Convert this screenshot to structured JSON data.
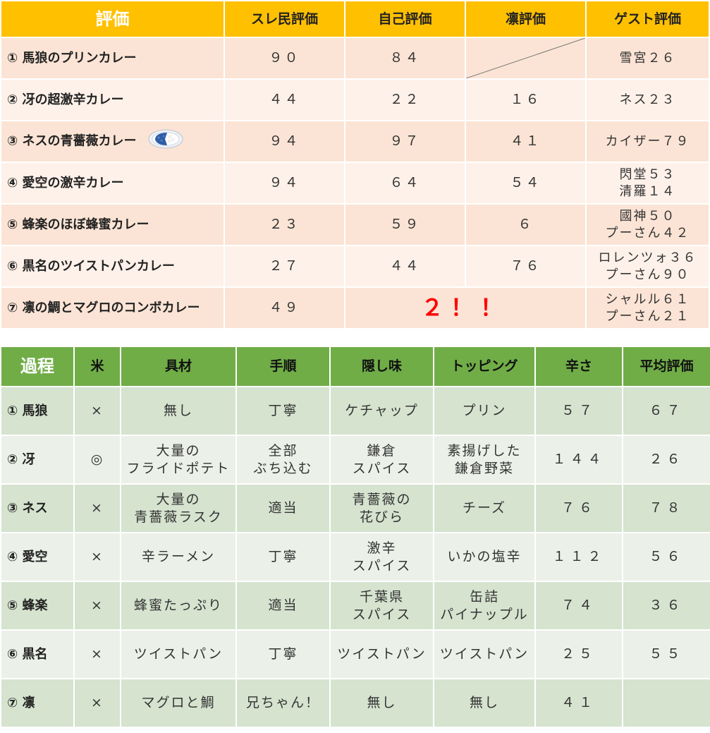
{
  "eval_table": {
    "headers": [
      "評価",
      "スレ民評価",
      "自己評価",
      "凛評価",
      "ゲスト評価"
    ],
    "rows": [
      {
        "name": "① 馬狼のプリンカレー",
        "thread": "９０",
        "self": "８４",
        "rin": "",
        "guest1": "雪宮２６",
        "guest2": ""
      },
      {
        "name": "② 冴の超激辛カレー",
        "thread": "４４",
        "self": "２２",
        "rin": "１６",
        "guest1": "ネス２３",
        "guest2": ""
      },
      {
        "name": "③ ネスの青薔薇カレー",
        "thread": "９４",
        "self": "９７",
        "rin": "４１",
        "guest1": "カイザー７９",
        "guest2": ""
      },
      {
        "name": "④ 愛空の激辛カレー",
        "thread": "９４",
        "self": "６４",
        "rin": "５４",
        "guest1": "閃堂５３",
        "guest2": "清羅１４"
      },
      {
        "name": "⑤ 蜂楽のほぼ蜂蜜カレー",
        "thread": "２３",
        "self": "５９",
        "rin": "６",
        "guest1": "國神５０",
        "guest2": "プーさん４２"
      },
      {
        "name": "⑥ 黒名のツイストパンカレー",
        "thread": "２７",
        "self": "４４",
        "rin": "７６",
        "guest1": "ロレンツォ３６",
        "guest2": "プーさん９０"
      },
      {
        "name": "⑦ 凛の鯛とマグロのコンボカレー",
        "thread": "４９",
        "merged": "２！！",
        "guest1": "シャルル６１",
        "guest2": "プーさん２１"
      }
    ]
  },
  "process_table": {
    "headers": [
      "過程",
      "米",
      "具材",
      "手順",
      "隠し味",
      "トッピング",
      "辛さ",
      "平均評価"
    ],
    "rows": [
      {
        "name": "① 馬狼",
        "rice": "×",
        "ing1": "無し",
        "ing2": "",
        "step1": "丁寧",
        "step2": "",
        "secret1": "ケチャップ",
        "secret2": "",
        "top1": "プリン",
        "top2": "",
        "spice": "５７",
        "avg": "６７"
      },
      {
        "name": "② 冴",
        "rice": "◎",
        "ing1": "大量の",
        "ing2": "フライドポテト",
        "step1": "全部",
        "step2": "ぶち込む",
        "secret1": "鎌倉",
        "secret2": "スパイス",
        "top1": "素揚げした",
        "top2": "鎌倉野菜",
        "spice": "１４４",
        "avg": "２６"
      },
      {
        "name": "③ ネス",
        "rice": "×",
        "ing1": "大量の",
        "ing2": "青薔薇ラスク",
        "step1": "適当",
        "step2": "",
        "secret1": "青薔薇の",
        "secret2": "花びら",
        "top1": "チーズ",
        "top2": "",
        "spice": "７６",
        "avg": "７８"
      },
      {
        "name": "④ 愛空",
        "rice": "×",
        "ing1": "辛ラーメン",
        "ing2": "",
        "step1": "丁寧",
        "step2": "",
        "secret1": "激辛",
        "secret2": "スパイス",
        "top1": "いかの塩辛",
        "top2": "",
        "spice": "１１２",
        "avg": "５６"
      },
      {
        "name": "⑤ 蜂楽",
        "rice": "×",
        "ing1": "蜂蜜たっぷり",
        "ing2": "",
        "step1": "適当",
        "step2": "",
        "secret1": "千葉県",
        "secret2": "スパイス",
        "top1": "缶詰",
        "top2": "パイナップル",
        "spice": "７４",
        "avg": "３６"
      },
      {
        "name": "⑥ 黒名",
        "rice": "×",
        "ing1": "ツイストパン",
        "ing2": "",
        "step1": "丁寧",
        "step2": "",
        "secret1": "ツイストパン",
        "secret2": "",
        "top1": "ツイストパン",
        "top2": "",
        "spice": "２５",
        "avg": "５５"
      },
      {
        "name": "⑦ 凛",
        "rice": "×",
        "ing1": "マグロと鯛",
        "ing2": "",
        "step1": "兄ちゃん！",
        "step2": "",
        "secret1": "無し",
        "secret2": "",
        "top1": "無し",
        "top2": "",
        "spice": "４１",
        "avg": ""
      }
    ]
  },
  "colors": {
    "eval_header": "#ffc000",
    "eval_row_dark": "#fbe4d5",
    "eval_row_light": "#fdf1e9",
    "process_header": "#70ad47",
    "process_row_dark": "#d5e3cf",
    "process_row_light": "#ebf1e8",
    "highlight": "#ff0000",
    "plate_blue": "#2f5ea8"
  },
  "icons": {
    "curry_plate": "blue-rose-curry-plate-icon"
  }
}
